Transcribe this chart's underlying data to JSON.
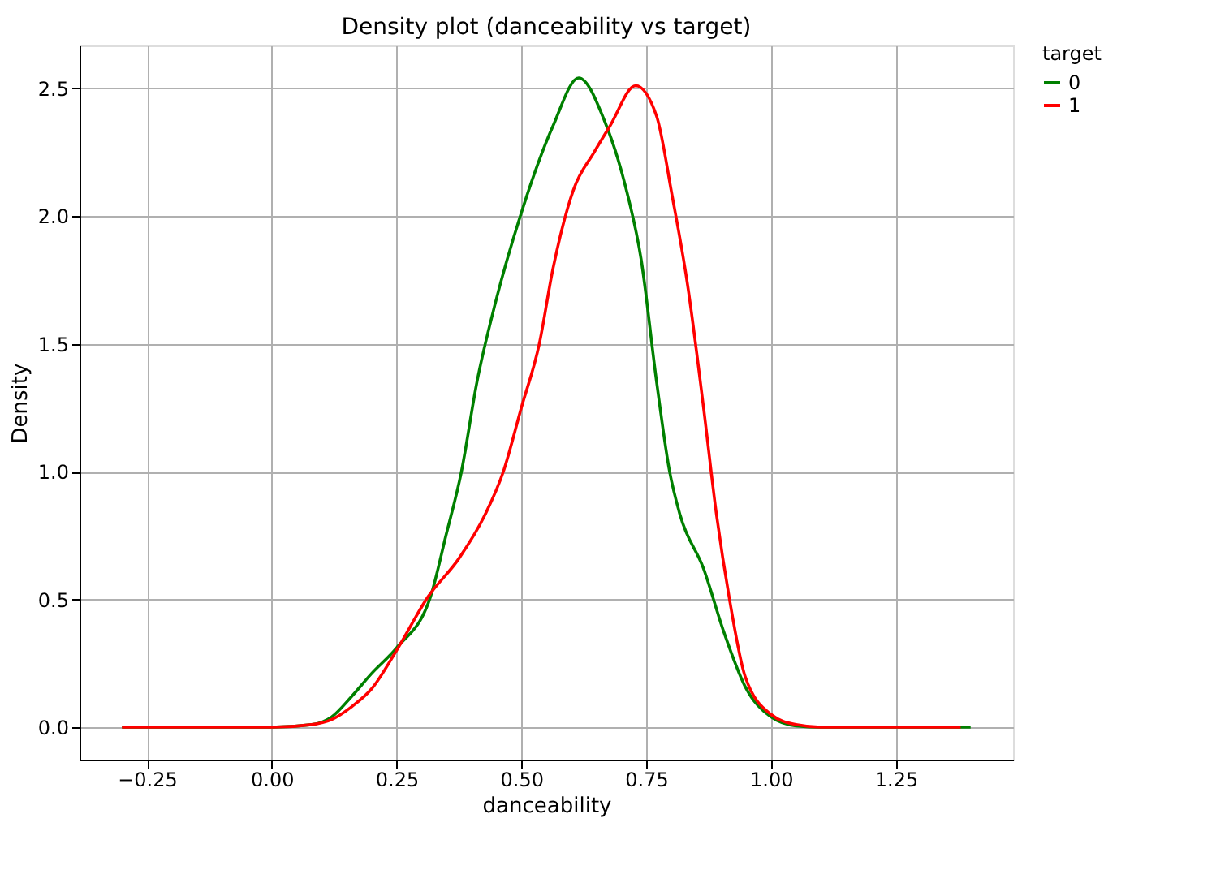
{
  "chart_data": {
    "type": "line",
    "title": "Density plot (danceability vs target)",
    "xlabel": "danceability",
    "ylabel": "Density",
    "legend_title": "target",
    "legend": "right",
    "grid": true,
    "xlim": [
      -0.385,
      1.485
    ],
    "ylim": [
      -0.127,
      2.667
    ],
    "xticks": [
      {
        "value": -0.25,
        "label": "−0.25"
      },
      {
        "value": 0,
        "label": "0.00"
      },
      {
        "value": 0.25,
        "label": "0.25"
      },
      {
        "value": 0.5,
        "label": "0.50"
      },
      {
        "value": 0.75,
        "label": "0.75"
      },
      {
        "value": 1,
        "label": "1.00"
      },
      {
        "value": 1.25,
        "label": "1.25"
      }
    ],
    "yticks": [
      {
        "value": 0,
        "label": "0.0"
      },
      {
        "value": 0.5,
        "label": "0.5"
      },
      {
        "value": 1,
        "label": "1.0"
      },
      {
        "value": 1.5,
        "label": "1.5"
      },
      {
        "value": 2,
        "label": "2.0"
      },
      {
        "value": 2.5,
        "label": "2.5"
      }
    ],
    "series": [
      {
        "name": "0",
        "color": "#008000",
        "x": [
          -0.3,
          0.0,
          0.08,
          0.12,
          0.16,
          0.2,
          0.25,
          0.318,
          0.349,
          0.38,
          0.411,
          0.448,
          0.498,
          0.563,
          0.615,
          0.667,
          0.708,
          0.74,
          0.771,
          0.797,
          0.818,
          0.865,
          0.906,
          0.948,
          1.0,
          1.05,
          1.1,
          1.4
        ],
        "values": [
          0,
          0,
          0.01,
          0.04,
          0.12,
          0.21,
          0.31,
          0.51,
          0.75,
          1.0,
          1.35,
          1.66,
          2.0,
          2.35,
          2.54,
          2.37,
          2.12,
          1.83,
          1.35,
          1.0,
          0.83,
          0.62,
          0.37,
          0.16,
          0.04,
          0.005,
          0,
          0
        ]
      },
      {
        "name": "1",
        "color": "#ff0000",
        "x": [
          -0.3,
          0.0,
          0.08,
          0.12,
          0.16,
          0.2,
          0.25,
          0.313,
          0.375,
          0.427,
          0.464,
          0.5,
          0.536,
          0.563,
          0.604,
          0.646,
          0.677,
          0.729,
          0.771,
          0.802,
          0.833,
          0.865,
          0.891,
          0.917,
          0.948,
          1.0,
          1.05,
          1.1,
          1.38
        ],
        "values": [
          0,
          0,
          0.01,
          0.03,
          0.08,
          0.15,
          0.3,
          0.51,
          0.66,
          0.83,
          1.0,
          1.25,
          1.5,
          1.79,
          2.1,
          2.25,
          2.35,
          2.51,
          2.39,
          2.08,
          1.73,
          1.25,
          0.83,
          0.5,
          0.2,
          0.05,
          0.01,
          0,
          0
        ]
      }
    ]
  }
}
